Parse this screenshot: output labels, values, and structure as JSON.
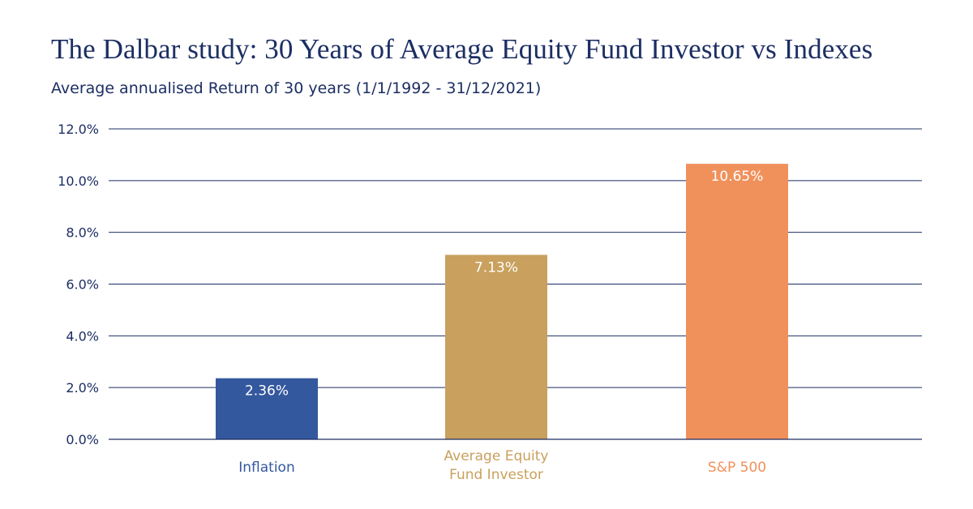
{
  "title": "The Dalbar study: 30 Years of Average Equity Fund Investor vs Indexes",
  "subtitle": "Average annualised Return of 30 years (1/1/1992 - 31/12/2021)",
  "chart_data": {
    "type": "bar",
    "categories": [
      [
        "Inflation"
      ],
      [
        "Average Equity",
        "Fund Investor"
      ],
      [
        "S&P 500"
      ]
    ],
    "values": [
      2.36,
      7.13,
      10.65
    ],
    "data_labels": [
      "2.36%",
      "7.13%",
      "10.65%"
    ],
    "colors": [
      "#34589e",
      "#c9a05d",
      "#f0915c"
    ],
    "ylim": [
      0,
      12
    ],
    "yticks": [
      0,
      2,
      4,
      6,
      8,
      10,
      12
    ],
    "ytick_labels": [
      "0.0%",
      "2.0%",
      "4.0%",
      "6.0%",
      "8.0%",
      "10.0%",
      "12.0%"
    ],
    "xlabel": "",
    "ylabel": "",
    "grid": true,
    "gridline_color": "#1c2e63"
  }
}
